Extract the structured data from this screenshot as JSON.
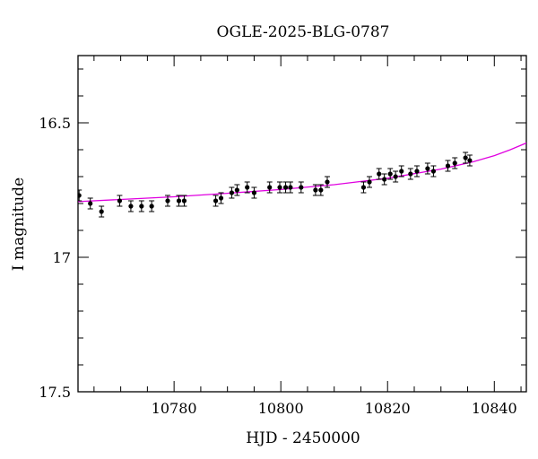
{
  "chart_data": {
    "type": "scatter",
    "title": "OGLE-2025-BLG-0787",
    "xlabel": "HJD - 2450000",
    "ylabel": "I magnitude",
    "xlim": [
      10762,
      10846
    ],
    "ylim": [
      17.5,
      16.25
    ],
    "y_inverted": true,
    "grid": false,
    "x_ticks": [
      10780,
      10800,
      10820,
      10840
    ],
    "y_ticks": [
      16.5,
      17,
      17.5
    ],
    "x_tick_labels": [
      "10780",
      "10800",
      "10820",
      "10840"
    ],
    "y_tick_labels": [
      "16.5",
      "17",
      "17.5"
    ],
    "colors": {
      "points": "#000000",
      "model": "#e000e0"
    },
    "series": [
      {
        "type": "scatter",
        "points": [
          {
            "x": 10762.2,
            "y": 16.77,
            "err": 0.02
          },
          {
            "x": 10764.3,
            "y": 16.8,
            "err": 0.02
          },
          {
            "x": 10766.4,
            "y": 16.83,
            "err": 0.02
          },
          {
            "x": 10769.8,
            "y": 16.79,
            "err": 0.02
          },
          {
            "x": 10771.9,
            "y": 16.81,
            "err": 0.02
          },
          {
            "x": 10773.9,
            "y": 16.81,
            "err": 0.02
          },
          {
            "x": 10775.8,
            "y": 16.81,
            "err": 0.02
          },
          {
            "x": 10778.8,
            "y": 16.79,
            "err": 0.02
          },
          {
            "x": 10780.9,
            "y": 16.79,
            "err": 0.02
          },
          {
            "x": 10781.9,
            "y": 16.79,
            "err": 0.02
          },
          {
            "x": 10787.8,
            "y": 16.79,
            "err": 0.02
          },
          {
            "x": 10788.8,
            "y": 16.78,
            "err": 0.02
          },
          {
            "x": 10790.8,
            "y": 16.76,
            "err": 0.02
          },
          {
            "x": 10791.8,
            "y": 16.75,
            "err": 0.02
          },
          {
            "x": 10793.7,
            "y": 16.74,
            "err": 0.02
          },
          {
            "x": 10795.0,
            "y": 16.76,
            "err": 0.02
          },
          {
            "x": 10797.9,
            "y": 16.74,
            "err": 0.02
          },
          {
            "x": 10799.8,
            "y": 16.74,
            "err": 0.02
          },
          {
            "x": 10800.9,
            "y": 16.74,
            "err": 0.02
          },
          {
            "x": 10801.8,
            "y": 16.74,
            "err": 0.02
          },
          {
            "x": 10803.8,
            "y": 16.74,
            "err": 0.02
          },
          {
            "x": 10806.5,
            "y": 16.75,
            "err": 0.02
          },
          {
            "x": 10807.5,
            "y": 16.75,
            "err": 0.02
          },
          {
            "x": 10808.7,
            "y": 16.72,
            "err": 0.02
          },
          {
            "x": 10815.5,
            "y": 16.74,
            "err": 0.02
          },
          {
            "x": 10816.6,
            "y": 16.72,
            "err": 0.02
          },
          {
            "x": 10818.4,
            "y": 16.69,
            "err": 0.02
          },
          {
            "x": 10819.4,
            "y": 16.71,
            "err": 0.02
          },
          {
            "x": 10820.5,
            "y": 16.69,
            "err": 0.02
          },
          {
            "x": 10821.5,
            "y": 16.7,
            "err": 0.02
          },
          {
            "x": 10822.6,
            "y": 16.68,
            "err": 0.02
          },
          {
            "x": 10824.3,
            "y": 16.69,
            "err": 0.02
          },
          {
            "x": 10825.5,
            "y": 16.68,
            "err": 0.02
          },
          {
            "x": 10827.5,
            "y": 16.67,
            "err": 0.02
          },
          {
            "x": 10828.6,
            "y": 16.68,
            "err": 0.02
          },
          {
            "x": 10831.3,
            "y": 16.66,
            "err": 0.02
          },
          {
            "x": 10832.6,
            "y": 16.65,
            "err": 0.02
          },
          {
            "x": 10834.6,
            "y": 16.63,
            "err": 0.02
          },
          {
            "x": 10835.4,
            "y": 16.64,
            "err": 0.02
          }
        ]
      },
      {
        "type": "line",
        "points": [
          {
            "x": 10762,
            "y": 16.793
          },
          {
            "x": 10770,
            "y": 16.785
          },
          {
            "x": 10780,
            "y": 16.775
          },
          {
            "x": 10790,
            "y": 16.762
          },
          {
            "x": 10800,
            "y": 16.748
          },
          {
            "x": 10810,
            "y": 16.73
          },
          {
            "x": 10820,
            "y": 16.706
          },
          {
            "x": 10830,
            "y": 16.672
          },
          {
            "x": 10836,
            "y": 16.645
          },
          {
            "x": 10840,
            "y": 16.622
          },
          {
            "x": 10843,
            "y": 16.6
          },
          {
            "x": 10846,
            "y": 16.575
          }
        ]
      }
    ]
  }
}
